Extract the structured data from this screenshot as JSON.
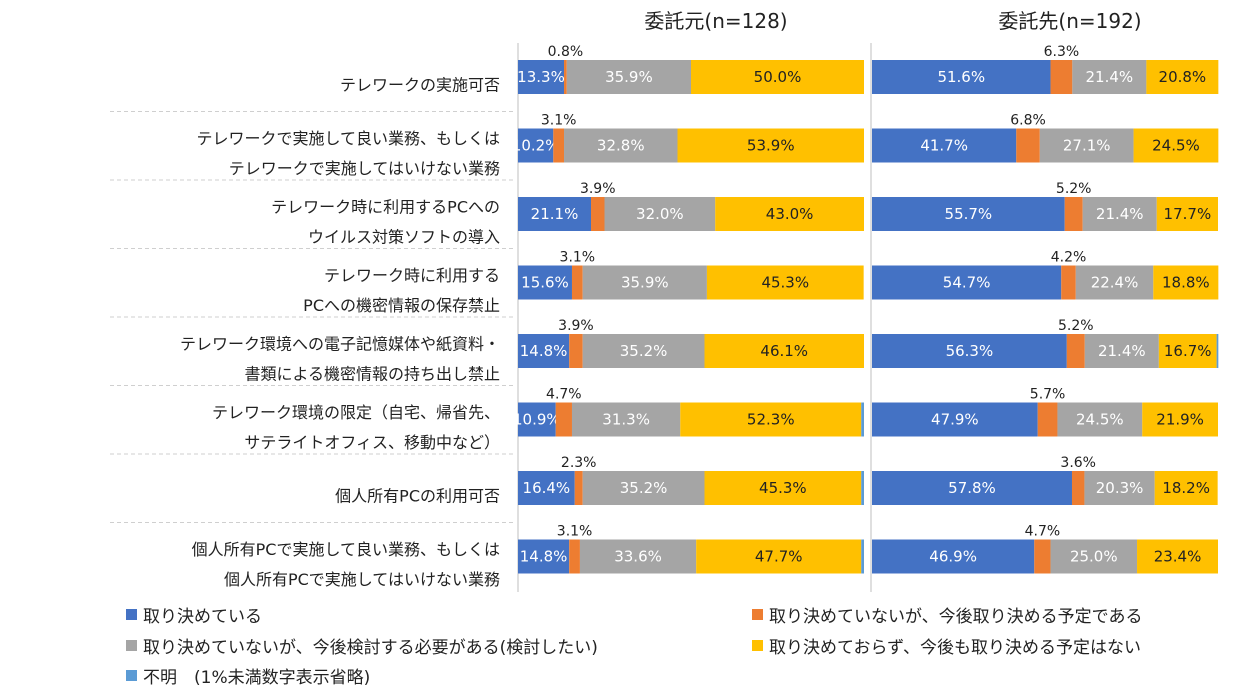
{
  "chart_data": {
    "type": "bar",
    "stacked": true,
    "orientation": "horizontal",
    "percent_scale": [
      0,
      100
    ],
    "categories": [
      [
        "テレワークの実施可否"
      ],
      [
        "テレワークで実施して良い業務、もしくは",
        "テレワークで実施してはいけない業務"
      ],
      [
        "テレワーク時に利用するPCへの",
        "ウイルス対策ソフトの導入"
      ],
      [
        "テレワーク時に利用する",
        "PCへの機密情報の保存禁止"
      ],
      [
        "テレワーク環境への電子記憶媒体や紙資料・",
        "書類による機密情報の持ち出し禁止"
      ],
      [
        "テレワーク環境の限定（自宅、帰省先、",
        "サテライトオフィス、移動中など）"
      ],
      [
        "個人所有PCの利用可否"
      ],
      [
        "個人所有PCで実施して良い業務、もしくは",
        "個人所有PCで実施してはいけない業務"
      ]
    ],
    "series_names": [
      "取り決めている",
      "取り決めていないが、今後取り決める予定である",
      "取り決めていないが、今後検討する必要がある(検討したい)",
      "取り決めておらず、今後も取り決める予定はない",
      "不明　(1%未満数字表示省略)"
    ],
    "series_colors": [
      "#4472C4",
      "#ED7D31",
      "#A5A5A5",
      "#FFC000",
      "#5B9BD5"
    ],
    "panels": [
      {
        "title": "委託元(n=128)",
        "values": [
          [
            13.3,
            0.8,
            35.9,
            50.0,
            0.0
          ],
          [
            10.2,
            3.1,
            32.8,
            53.9,
            0.0
          ],
          [
            21.1,
            3.9,
            32.0,
            43.0,
            0.0
          ],
          [
            15.6,
            3.1,
            35.9,
            45.3,
            0.0
          ],
          [
            14.8,
            3.9,
            35.2,
            46.1,
            0.0
          ],
          [
            10.9,
            4.7,
            31.3,
            52.3,
            0.8
          ],
          [
            16.4,
            2.3,
            35.2,
            45.3,
            0.8
          ],
          [
            14.8,
            3.1,
            33.6,
            47.7,
            0.8
          ]
        ],
        "labels": [
          [
            "13.3%",
            "0.8%",
            "35.9%",
            "50.0%",
            ""
          ],
          [
            "10.2%",
            "3.1%",
            "32.8%",
            "53.9%",
            ""
          ],
          [
            "21.1%",
            "3.9%",
            "32.0%",
            "43.0%",
            ""
          ],
          [
            "15.6%",
            "3.1%",
            "35.9%",
            "45.3%",
            ""
          ],
          [
            "14.8%",
            "3.9%",
            "35.2%",
            "46.1%",
            ""
          ],
          [
            "10.9%",
            "4.7%",
            "31.3%",
            "52.3%",
            ""
          ],
          [
            "16.4%",
            "2.3%",
            "35.2%",
            "45.3%",
            ""
          ],
          [
            "14.8%",
            "3.1%",
            "33.6%",
            "47.7%",
            ""
          ]
        ]
      },
      {
        "title": "委託先(n=192)",
        "values": [
          [
            51.6,
            6.3,
            21.4,
            20.8,
            0.0
          ],
          [
            41.7,
            6.8,
            27.1,
            24.5,
            0.0
          ],
          [
            55.7,
            5.2,
            21.4,
            17.7,
            0.0
          ],
          [
            54.7,
            4.2,
            22.4,
            18.8,
            0.0
          ],
          [
            56.3,
            5.2,
            21.4,
            16.7,
            0.5
          ],
          [
            47.9,
            5.7,
            24.5,
            21.9,
            0.0
          ],
          [
            57.8,
            3.6,
            20.3,
            18.2,
            0.0
          ],
          [
            46.9,
            4.7,
            25.0,
            23.4,
            0.0
          ]
        ],
        "labels": [
          [
            "51.6%",
            "6.3%",
            "21.4%",
            "20.8%",
            ""
          ],
          [
            "41.7%",
            "6.8%",
            "27.1%",
            "24.5%",
            ""
          ],
          [
            "55.7%",
            "5.2%",
            "21.4%",
            "17.7%",
            ""
          ],
          [
            "54.7%",
            "4.2%",
            "22.4%",
            "18.8%",
            ""
          ],
          [
            "56.3%",
            "5.2%",
            "21.4%",
            "16.7%",
            ""
          ],
          [
            "47.9%",
            "5.7%",
            "24.5%",
            "21.9%",
            ""
          ],
          [
            "57.8%",
            "3.6%",
            "20.3%",
            "18.2%",
            ""
          ],
          [
            "46.9%",
            "4.7%",
            "25.0%",
            "23.4%",
            ""
          ]
        ]
      }
    ],
    "grid": false,
    "legend_position": "bottom"
  },
  "legend": {
    "items": [
      "取り決めている",
      "取り決めていないが、今後取り決める予定である",
      "取り決めていないが、今後検討する必要がある(検討したい)",
      "取り決めておらず、今後も取り決める予定はない",
      "不明　(1%未満数字表示省略)"
    ]
  }
}
